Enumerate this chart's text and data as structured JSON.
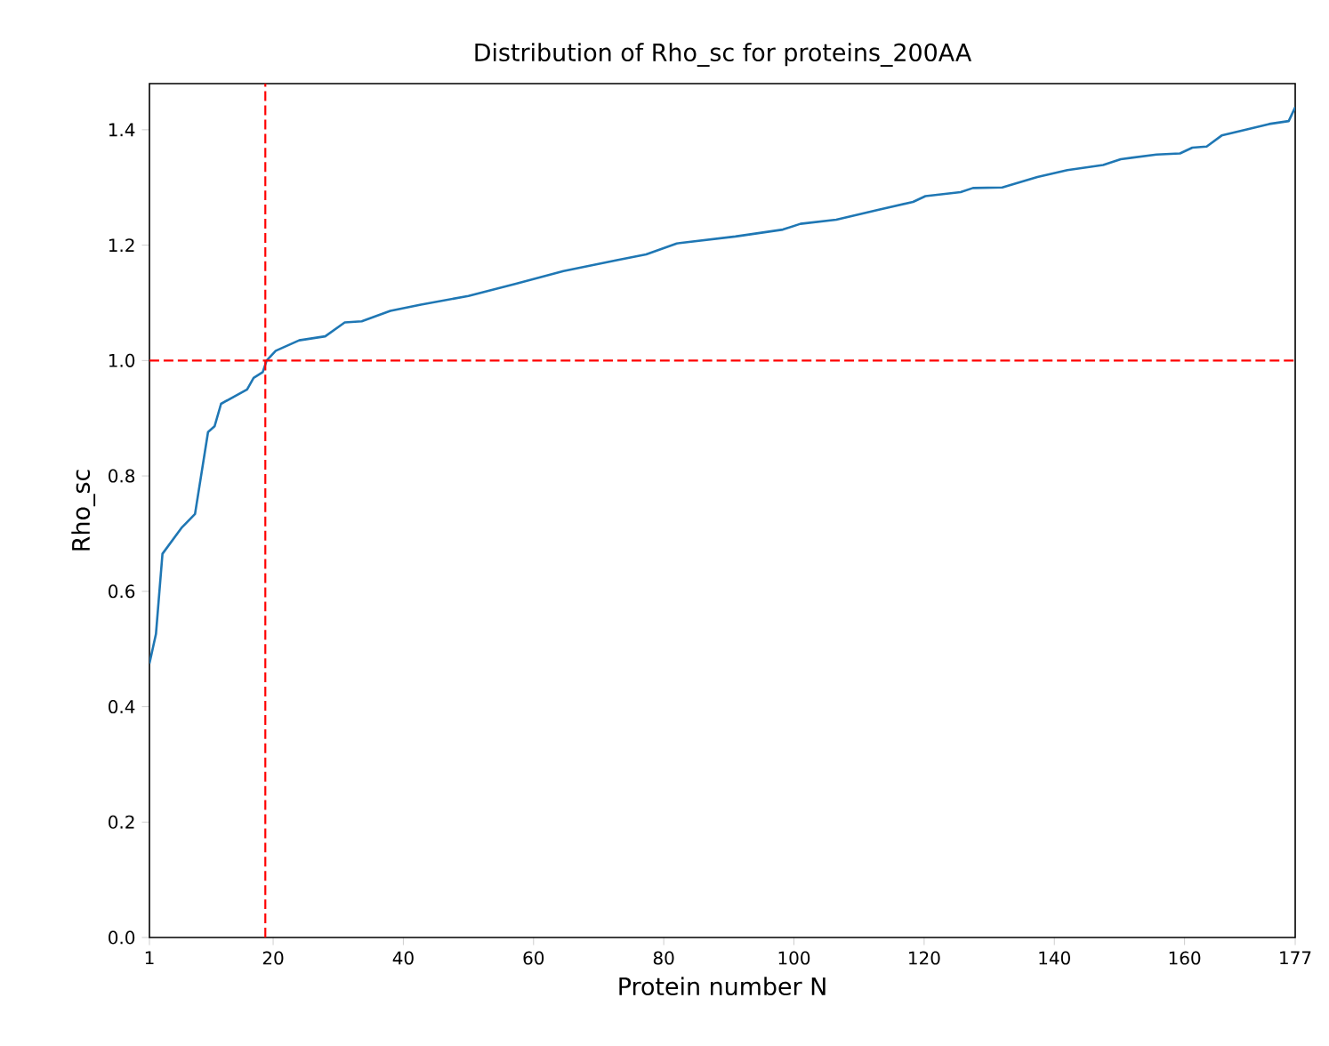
{
  "chart_data": {
    "type": "line",
    "title": "Distribution of Rho_sc for proteins_200AA",
    "xlabel": "Protein number N",
    "ylabel": "Rho_sc",
    "x": [
      1,
      2,
      3,
      6,
      8,
      10,
      11,
      12,
      16,
      17,
      18.4,
      19,
      20.4,
      24,
      28,
      31,
      33.6,
      38,
      42.7,
      50,
      57.3,
      64.6,
      72.8,
      77.3,
      82,
      91,
      98.3,
      101,
      106.5,
      112.9,
      118.3,
      120.2,
      125.6,
      127.5,
      132,
      137.4,
      142,
      147.5,
      150.2,
      155.7,
      159.3,
      161.2,
      163.4,
      165.7,
      169.3,
      173,
      176,
      177
    ],
    "series": [
      {
        "color": "#1f77b4",
        "values": [
          0.475,
          0.526,
          0.665,
          0.711,
          0.734,
          0.876,
          0.886,
          0.925,
          0.95,
          0.97,
          0.98,
          1.0,
          1.017,
          1.035,
          1.042,
          1.066,
          1.068,
          1.086,
          1.097,
          1.112,
          1.133,
          1.155,
          1.174,
          1.184,
          1.203,
          1.215,
          1.227,
          1.237,
          1.244,
          1.261,
          1.275,
          1.285,
          1.292,
          1.299,
          1.3,
          1.318,
          1.33,
          1.339,
          1.349,
          1.357,
          1.359,
          1.369,
          1.371,
          1.39,
          1.4,
          1.41,
          1.415,
          1.439
        ]
      }
    ],
    "xlim": [
      1,
      177
    ],
    "ylim": [
      0,
      1.48
    ],
    "xticks": [
      1,
      20,
      40,
      60,
      80,
      100,
      120,
      140,
      160,
      177
    ],
    "yticks": [
      {
        "value": 0,
        "label": "0.0"
      },
      {
        "value": 0.2,
        "label": "0.2"
      },
      {
        "value": 0.4,
        "label": "0.4"
      },
      {
        "value": 0.6,
        "label": "0.6"
      },
      {
        "value": 0.8,
        "label": "0.8"
      },
      {
        "value": 1.0,
        "label": "1.0"
      },
      {
        "value": 1.2,
        "label": "1.2"
      },
      {
        "value": 1.4,
        "label": "1.4"
      }
    ],
    "ref_lines": [
      {
        "axis": "y",
        "value": 1.0,
        "color": "#ff0000",
        "line_style": "dashed"
      },
      {
        "axis": "x",
        "value": 18.8,
        "color": "#ff0000",
        "line_style": "dashed"
      }
    ],
    "grid": false,
    "marker": "none",
    "line_style": "solid"
  }
}
